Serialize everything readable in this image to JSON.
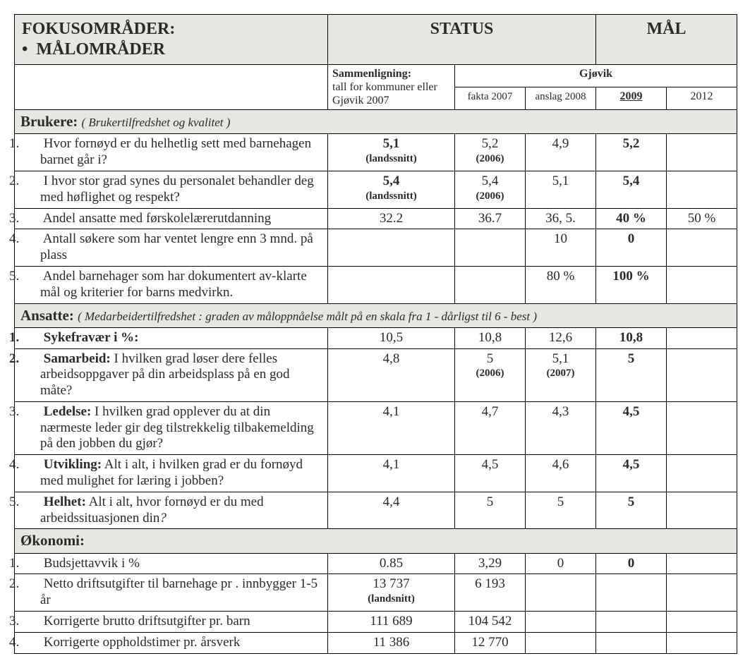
{
  "colors": {
    "header_bg": "#e8e6e0",
    "border": "#000000",
    "text": "#2a2a2a",
    "bg": "#ffffff"
  },
  "header": {
    "left_line1": "FOKUSOMRÅDER:",
    "left_bullet": "•",
    "left_line2": "MÅLOMRÅDER",
    "status": "STATUS",
    "maal": "MÅL",
    "sammen_line1": "Sammenligning:",
    "sammen_line2": "tall for kommuner eller Gjøvik 2007",
    "gjovik": "Gjøvik",
    "fakta": "fakta 2007",
    "anslag": "anslag 2008",
    "y2009": "2009",
    "y2012": "2012"
  },
  "sections": {
    "brukere": {
      "title": "Brukere:",
      "note": "( Brukertilfredshet og kvalitet )"
    },
    "ansatte": {
      "title": "Ansatte:",
      "note": "( Medarbeidertilfredshet : graden av måloppnåelse målt på en skala fra 1 - dårligst til 6 - best )"
    },
    "okonomi": {
      "title": "Økonomi:"
    }
  },
  "brukere": [
    {
      "n": "1.",
      "label": "Hvor fornøyd er du helhetlig sett med barnehagen barnet går i?",
      "c1": "5,1",
      "c1n": "(landssnitt)",
      "c2": "5,2",
      "c2n": "(2006)",
      "c3": "4,9",
      "c4": "5,2",
      "c5": ""
    },
    {
      "n": "2.",
      "label": "I hvor stor grad synes du personalet behandler deg med høflighet og respekt?",
      "c1": "5,4",
      "c1n": "(landssnitt)",
      "c2": "5,4",
      "c2n": "(2006)",
      "c3": "5,1",
      "c4": "5,4",
      "c5": ""
    },
    {
      "n": "3.",
      "label": "Andel ansatte med førskolelærerutdanning",
      "c1": "32.2",
      "c2": "36.7",
      "c3": "36, 5.",
      "c4": "40 %",
      "c5": "50 %"
    },
    {
      "n": "4.",
      "label": "Antall  søkere som har ventet lengre enn 3 mnd. på  plass",
      "c1": "",
      "c2": "",
      "c3": "10",
      "c4": "0",
      "c5": ""
    },
    {
      "n": "5.",
      "label": "Andel barnehager som har dokumentert av-klarte mål og kriterier for barns medvirkn.",
      "c1": "",
      "c2": "",
      "c3": "80 %",
      "c4": "100 %",
      "c5": ""
    }
  ],
  "ansatte": [
    {
      "n": "1.",
      "nb": true,
      "label_b": "Sykefravær i %:",
      "label_r": "",
      "c1": "10,5",
      "c2": "10,8",
      "c3": "12,6",
      "c4": "10,8",
      "c5": ""
    },
    {
      "n": "2.",
      "nb": true,
      "label_b": "Samarbeid:",
      "label_r": " I hvilken grad løser dere felles arbeidsoppgaver på din arbeidsplass på en god måte?",
      "c1": "4,8",
      "c2": "5",
      "c2n": "(2006)",
      "c3": "5,1",
      "c3n": "(2007)",
      "c4": "5",
      "c5": ""
    },
    {
      "n": "3.",
      "label_b": "Ledelse:",
      "label_r": " I hvilken grad opplever du at din nærmeste leder gir deg tilstrekkelig tilbakemelding på den jobben du gjør?",
      "c1": "4,1",
      "c2": "4,7",
      "c3": "4,3",
      "c4": "4,5",
      "c5": ""
    },
    {
      "n": "4.",
      "label_b": "Utvikling:",
      "label_r": " Alt i alt, i hvilken grad er du fornøyd med mulighet for læring i jobben?",
      "c1": "4,1",
      "c2": "4,5",
      "c3": "4,6",
      "c4": "4,5",
      "c5": ""
    },
    {
      "n": "5.",
      "label_b": "Helhet:",
      "label_r": " Alt i alt, hvor fornøyd er du med arbeidssituasjonen din",
      "label_it": "?",
      "c1": "4,4",
      "c2": "5",
      "c3": "5",
      "c4": "5",
      "c5": ""
    }
  ],
  "okonomi": [
    {
      "n": "1.",
      "label": "Budsjettavvik i %",
      "c1": "0.85",
      "c2": "3,29",
      "c3": "0",
      "c4": "0",
      "c5": ""
    },
    {
      "n": "2.",
      "label": "Netto driftsutgifter til barnehage pr . innbygger 1-5 år",
      "c1": "13 737",
      "c1n": "(landsnitt)",
      "c2": "6 193",
      "c3": "",
      "c4": "",
      "c5": ""
    },
    {
      "n": "3.",
      "label": "Korrigerte brutto driftsutgifter pr. barn",
      "c1": "111 689",
      "c2": "104 542",
      "c3": "",
      "c4": "",
      "c5": ""
    },
    {
      "n": "4.",
      "label": "Korrigerte oppholdstimer pr. årsverk",
      "c1": "11 386",
      "c2": "12 770",
      "c3": "",
      "c4": "",
      "c5": ""
    }
  ]
}
